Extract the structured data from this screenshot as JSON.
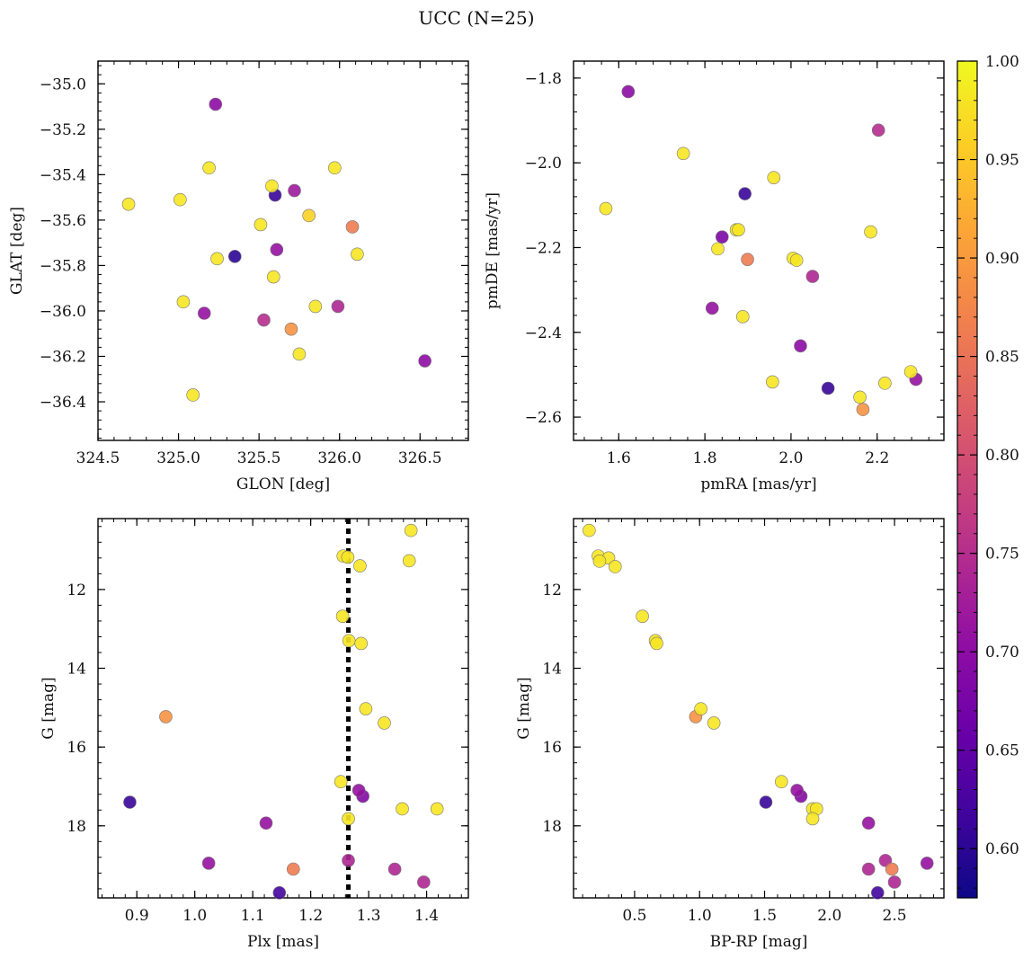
{
  "figure": {
    "title": "UCC (N=25)"
  },
  "colorbar": {
    "colormap": "plasma",
    "range": [
      0.575,
      1.0
    ],
    "ticks": [
      0.6,
      0.65,
      0.7,
      0.75,
      0.8,
      0.85,
      0.9,
      0.95,
      1.0
    ],
    "tick_labels": [
      "0.60",
      "0.65",
      "0.70",
      "0.75",
      "0.80",
      "0.85",
      "0.90",
      "0.95",
      "1.00"
    ]
  },
  "chart_data": [
    {
      "id": "sky",
      "type": "scatter",
      "xlabel": "GLON [deg]",
      "ylabel": "GLAT [deg]",
      "xlim": [
        324.5,
        326.8
      ],
      "ylim": [
        -36.57,
        -34.9
      ],
      "xticks": [
        324.5,
        325.0,
        325.5,
        326.0,
        326.5
      ],
      "xtick_labels": [
        "324.5",
        "325.0",
        "325.5",
        "326.0",
        "326.5"
      ],
      "yticks": [
        -35.0,
        -35.2,
        -35.4,
        -35.6,
        -35.8,
        -36.0,
        -36.2,
        -36.4
      ],
      "ytick_labels": [
        "−35.0",
        "−35.2",
        "−35.4",
        "−35.6",
        "−35.8",
        "−36.0",
        "−36.2",
        "−36.4"
      ],
      "points": [
        {
          "x": 325.23,
          "y": -35.09,
          "c": 0.7
        },
        {
          "x": 325.19,
          "y": -35.37,
          "c": 0.98
        },
        {
          "x": 325.97,
          "y": -35.37,
          "c": 0.98
        },
        {
          "x": 325.58,
          "y": -35.45,
          "c": 0.98
        },
        {
          "x": 325.6,
          "y": -35.49,
          "c": 0.61
        },
        {
          "x": 325.72,
          "y": -35.47,
          "c": 0.72
        },
        {
          "x": 324.69,
          "y": -35.53,
          "c": 0.98
        },
        {
          "x": 325.01,
          "y": -35.51,
          "c": 0.98
        },
        {
          "x": 325.81,
          "y": -35.58,
          "c": 0.96
        },
        {
          "x": 325.51,
          "y": -35.62,
          "c": 0.98
        },
        {
          "x": 326.08,
          "y": -35.63,
          "c": 0.86
        },
        {
          "x": 325.61,
          "y": -35.73,
          "c": 0.71
        },
        {
          "x": 326.11,
          "y": -35.75,
          "c": 0.98
        },
        {
          "x": 325.35,
          "y": -35.76,
          "c": 0.6
        },
        {
          "x": 325.24,
          "y": -35.77,
          "c": 0.98
        },
        {
          "x": 325.59,
          "y": -35.85,
          "c": 0.98
        },
        {
          "x": 325.03,
          "y": -35.96,
          "c": 0.98
        },
        {
          "x": 325.85,
          "y": -35.98,
          "c": 0.98
        },
        {
          "x": 325.99,
          "y": -35.98,
          "c": 0.74
        },
        {
          "x": 325.16,
          "y": -36.01,
          "c": 0.71
        },
        {
          "x": 325.53,
          "y": -36.04,
          "c": 0.75
        },
        {
          "x": 325.7,
          "y": -36.08,
          "c": 0.89
        },
        {
          "x": 325.75,
          "y": -36.19,
          "c": 0.98
        },
        {
          "x": 326.53,
          "y": -36.22,
          "c": 0.7
        },
        {
          "x": 325.09,
          "y": -36.37,
          "c": 0.98
        }
      ]
    },
    {
      "id": "pm",
      "type": "scatter",
      "xlabel": "pmRA [mas/yr]",
      "ylabel": "pmDE [mas/yr]",
      "xlim": [
        1.495,
        2.355
      ],
      "ylim": [
        -2.655,
        -1.76
      ],
      "xticks": [
        1.6,
        1.8,
        2.0,
        2.2
      ],
      "xtick_labels": [
        "1.6",
        "1.8",
        "2.0",
        "2.2"
      ],
      "yticks": [
        -1.8,
        -2.0,
        -2.2,
        -2.4,
        -2.6
      ],
      "ytick_labels": [
        "−1.8",
        "−2.0",
        "−2.2",
        "−2.4",
        "−2.6"
      ],
      "points": [
        {
          "x": 1.622,
          "y": -1.832,
          "c": 0.7
        },
        {
          "x": 2.203,
          "y": -1.923,
          "c": 0.75
        },
        {
          "x": 1.75,
          "y": -1.978,
          "c": 0.98
        },
        {
          "x": 1.96,
          "y": -2.035,
          "c": 0.98
        },
        {
          "x": 1.893,
          "y": -2.073,
          "c": 0.61
        },
        {
          "x": 1.57,
          "y": -2.108,
          "c": 0.98
        },
        {
          "x": 1.873,
          "y": -2.158,
          "c": 0.98
        },
        {
          "x": 1.878,
          "y": -2.158,
          "c": 0.98
        },
        {
          "x": 2.185,
          "y": -2.163,
          "c": 0.98
        },
        {
          "x": 1.84,
          "y": -2.175,
          "c": 0.68
        },
        {
          "x": 1.83,
          "y": -2.203,
          "c": 0.98
        },
        {
          "x": 2.005,
          "y": -2.225,
          "c": 0.98
        },
        {
          "x": 1.899,
          "y": -2.228,
          "c": 0.86
        },
        {
          "x": 2.013,
          "y": -2.23,
          "c": 0.98
        },
        {
          "x": 2.05,
          "y": -2.268,
          "c": 0.74
        },
        {
          "x": 1.817,
          "y": -2.343,
          "c": 0.71
        },
        {
          "x": 1.888,
          "y": -2.363,
          "c": 0.98
        },
        {
          "x": 2.022,
          "y": -2.432,
          "c": 0.7
        },
        {
          "x": 2.278,
          "y": -2.493,
          "c": 0.98
        },
        {
          "x": 2.29,
          "y": -2.511,
          "c": 0.71
        },
        {
          "x": 1.957,
          "y": -2.517,
          "c": 0.98
        },
        {
          "x": 2.218,
          "y": -2.52,
          "c": 0.98
        },
        {
          "x": 2.086,
          "y": -2.532,
          "c": 0.61
        },
        {
          "x": 2.16,
          "y": -2.553,
          "c": 0.98
        },
        {
          "x": 2.167,
          "y": -2.582,
          "c": 0.89
        }
      ]
    },
    {
      "id": "plx",
      "type": "scatter",
      "xlabel": "Plx [mas]",
      "ylabel": "G [mag]",
      "xlim": [
        0.833,
        1.472
      ],
      "ylim": [
        19.83,
        10.2
      ],
      "vline": 1.265,
      "xticks": [
        0.9,
        1.0,
        1.1,
        1.2,
        1.3,
        1.4
      ],
      "xtick_labels": [
        "0.9",
        "1.0",
        "1.1",
        "1.2",
        "1.3",
        "1.4"
      ],
      "yticks": [
        12,
        14,
        16,
        18
      ],
      "ytick_labels": [
        "12",
        "14",
        "16",
        "18"
      ],
      "points": [
        {
          "x": 1.373,
          "y": 10.5,
          "c": 0.98
        },
        {
          "x": 1.256,
          "y": 11.15,
          "c": 0.98
        },
        {
          "x": 1.264,
          "y": 11.18,
          "c": 0.98
        },
        {
          "x": 1.37,
          "y": 11.27,
          "c": 0.98
        },
        {
          "x": 1.285,
          "y": 11.4,
          "c": 0.98
        },
        {
          "x": 1.255,
          "y": 12.68,
          "c": 0.98
        },
        {
          "x": 1.266,
          "y": 13.3,
          "c": 0.98
        },
        {
          "x": 1.287,
          "y": 13.37,
          "c": 0.98
        },
        {
          "x": 1.295,
          "y": 15.03,
          "c": 0.98
        },
        {
          "x": 0.95,
          "y": 15.23,
          "c": 0.89
        },
        {
          "x": 1.327,
          "y": 15.39,
          "c": 0.98
        },
        {
          "x": 1.252,
          "y": 16.88,
          "c": 0.98
        },
        {
          "x": 1.283,
          "y": 17.1,
          "c": 0.71
        },
        {
          "x": 1.29,
          "y": 17.25,
          "c": 0.69
        },
        {
          "x": 0.888,
          "y": 17.4,
          "c": 0.61
        },
        {
          "x": 1.358,
          "y": 17.57,
          "c": 0.98
        },
        {
          "x": 1.418,
          "y": 17.57,
          "c": 0.98
        },
        {
          "x": 1.265,
          "y": 17.82,
          "c": 0.98
        },
        {
          "x": 1.123,
          "y": 17.93,
          "c": 0.71
        },
        {
          "x": 1.265,
          "y": 18.88,
          "c": 0.74
        },
        {
          "x": 1.024,
          "y": 18.95,
          "c": 0.71
        },
        {
          "x": 1.17,
          "y": 19.1,
          "c": 0.86
        },
        {
          "x": 1.345,
          "y": 19.1,
          "c": 0.74
        },
        {
          "x": 1.395,
          "y": 19.43,
          "c": 0.74
        },
        {
          "x": 1.146,
          "y": 19.7,
          "c": 0.62
        }
      ]
    },
    {
      "id": "cmd",
      "type": "scatter",
      "xlabel": "BP-RP [mag]",
      "ylabel": "G [mag]",
      "xlim": [
        0.03,
        2.88
      ],
      "ylim": [
        19.83,
        10.2
      ],
      "xticks": [
        0.5,
        1.0,
        1.5,
        2.0,
        2.5
      ],
      "xtick_labels": [
        "0.5",
        "1.0",
        "1.5",
        "2.0",
        "2.5"
      ],
      "yticks": [
        12,
        14,
        16,
        18
      ],
      "ytick_labels": [
        "12",
        "14",
        "16",
        "18"
      ],
      "points": [
        {
          "x": 0.15,
          "y": 10.5,
          "c": 0.98
        },
        {
          "x": 0.22,
          "y": 11.15,
          "c": 0.98
        },
        {
          "x": 0.3,
          "y": 11.2,
          "c": 0.98
        },
        {
          "x": 0.23,
          "y": 11.28,
          "c": 0.98
        },
        {
          "x": 0.35,
          "y": 11.42,
          "c": 0.98
        },
        {
          "x": 0.56,
          "y": 12.68,
          "c": 0.98
        },
        {
          "x": 0.66,
          "y": 13.3,
          "c": 0.98
        },
        {
          "x": 0.67,
          "y": 13.37,
          "c": 0.98
        },
        {
          "x": 1.01,
          "y": 15.03,
          "c": 0.98
        },
        {
          "x": 0.97,
          "y": 15.23,
          "c": 0.89
        },
        {
          "x": 1.11,
          "y": 15.39,
          "c": 0.98
        },
        {
          "x": 1.63,
          "y": 16.88,
          "c": 0.98
        },
        {
          "x": 1.75,
          "y": 17.1,
          "c": 0.71
        },
        {
          "x": 1.78,
          "y": 17.25,
          "c": 0.69
        },
        {
          "x": 1.51,
          "y": 17.4,
          "c": 0.61
        },
        {
          "x": 1.87,
          "y": 17.57,
          "c": 0.98
        },
        {
          "x": 1.9,
          "y": 17.57,
          "c": 0.98
        },
        {
          "x": 1.87,
          "y": 17.82,
          "c": 0.98
        },
        {
          "x": 2.3,
          "y": 17.93,
          "c": 0.71
        },
        {
          "x": 2.43,
          "y": 18.88,
          "c": 0.74
        },
        {
          "x": 2.75,
          "y": 18.95,
          "c": 0.71
        },
        {
          "x": 2.48,
          "y": 19.1,
          "c": 0.86
        },
        {
          "x": 2.3,
          "y": 19.1,
          "c": 0.74
        },
        {
          "x": 2.5,
          "y": 19.43,
          "c": 0.74
        },
        {
          "x": 2.37,
          "y": 19.7,
          "c": 0.62
        }
      ]
    }
  ]
}
